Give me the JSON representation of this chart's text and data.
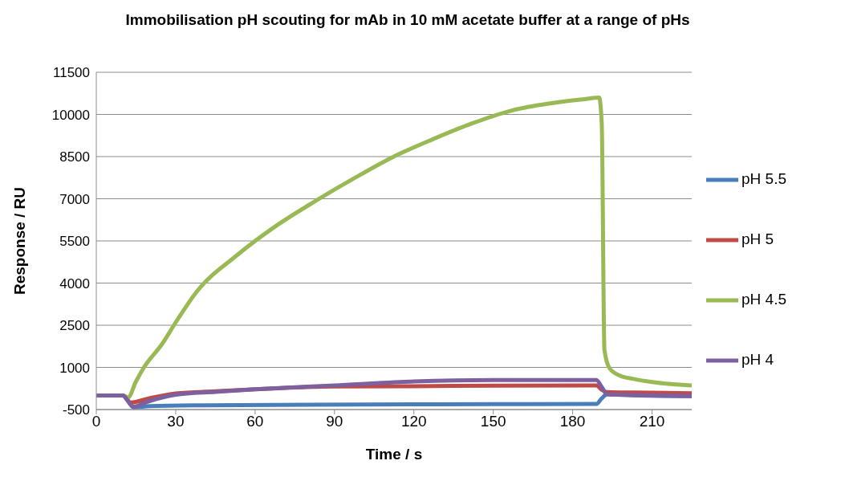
{
  "chart_data": {
    "type": "line",
    "title": "Immobilisation pH scouting for mAb in 10 mM acetate buffer at a range of pHs",
    "xlabel": "Time / s",
    "ylabel": "Response / RU",
    "xlim": [
      0,
      225
    ],
    "xticks": [
      0,
      30,
      60,
      90,
      120,
      150,
      180,
      210
    ],
    "ylim": [
      -500,
      11500
    ],
    "yticks": [
      -500,
      1000,
      2500,
      4000,
      5500,
      7000,
      8500,
      10000,
      11500
    ],
    "grid": "y",
    "legend": "right",
    "marker": "none",
    "line_style": "solid",
    "series": [
      {
        "name": "pH 5.5",
        "color": "#4a7ebb",
        "x": [
          0,
          10,
          12,
          14,
          20,
          40,
          100,
          150,
          189,
          191,
          193,
          205,
          225
        ],
        "values": [
          0,
          0,
          -200,
          -420,
          -380,
          -350,
          -320,
          -310,
          -300,
          -100,
          40,
          0,
          -20
        ]
      },
      {
        "name": "pH 5",
        "color": "#be4b48",
        "x": [
          0,
          10,
          13,
          20,
          30,
          45,
          60,
          90,
          120,
          150,
          189,
          191,
          193,
          210,
          225
        ],
        "values": [
          0,
          0,
          -250,
          -100,
          70,
          150,
          220,
          320,
          330,
          350,
          360,
          200,
          120,
          100,
          80
        ]
      },
      {
        "name": "pH 4.5",
        "color": "#98b954",
        "x": [
          0,
          10,
          12,
          15,
          18,
          25,
          30,
          38,
          53,
          68,
          83,
          98,
          112,
          127,
          142,
          157,
          172,
          185,
          190,
          191,
          192,
          194,
          198,
          203,
          210,
          225
        ],
        "values": [
          0,
          0,
          -70,
          500,
          1000,
          1850,
          2600,
          3700,
          4980,
          6040,
          6930,
          7760,
          8480,
          9110,
          9680,
          10140,
          10400,
          10550,
          10600,
          9660,
          1630,
          960,
          700,
          590,
          480,
          360
        ]
      },
      {
        "name": "pH 4",
        "color": "#7d60a0",
        "x": [
          0,
          10,
          14,
          20,
          30,
          45,
          60,
          90,
          120,
          150,
          189,
          191,
          193,
          210,
          225
        ],
        "values": [
          0,
          0,
          -400,
          -200,
          30,
          130,
          220,
          360,
          500,
          550,
          550,
          300,
          40,
          0,
          -20
        ]
      }
    ]
  }
}
